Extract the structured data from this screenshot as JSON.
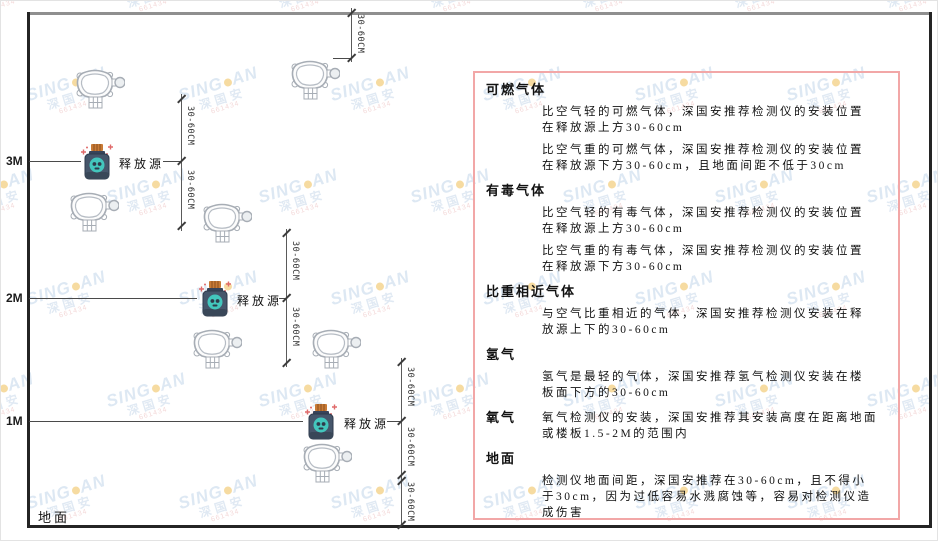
{
  "diagram": {
    "heights": [
      "3M",
      "2M",
      "1M"
    ],
    "source_label": "释放源",
    "ground_label": "地面",
    "dim_label": "30-60CM"
  },
  "panel": {
    "sections": [
      {
        "heading": "可燃气体",
        "paras": [
          "比空气轻的可燃气体，深国安推荐检测仪的安装位置在释放源上方30-60cm",
          "比空气重的可燃气体，深国安推荐检测仪的安装位置在释放源下方30-60cm，且地面间距不低于30cm"
        ]
      },
      {
        "heading": "有毒气体",
        "paras": [
          "比空气轻的有毒气体，深国安推荐检测仪的安装位置在释放源上方30-60cm",
          "比空气重的有毒气体，深国安推荐检测仪的安装位置在释放源下方30-60cm"
        ]
      },
      {
        "heading": "比重相近气体",
        "paras": [
          "与空气比重相近的气体，深国安推荐检测仪安装在释放源上下的30-60cm"
        ]
      },
      {
        "heading": "氢气",
        "paras": [
          "氢气是最轻的气体，深国安推荐氢气检测仪安装在楼板面下方的30-60cm"
        ]
      },
      {
        "heading": "氧气",
        "paras": [
          "氧气检测仪的安装，深国安推荐其安装高度在距离地面或楼板1.5-2M的范围内"
        ]
      },
      {
        "heading": "地面",
        "paras": [
          "检测仪地面间距，深国安推荐在30-60cm，且不得小于30cm，因为过低容易水溅腐蚀等，容易对检测仪造成伤害"
        ]
      }
    ]
  },
  "watermark": {
    "brand_left": "SING",
    "brand_right": "AN",
    "cjk": "深国安",
    "code": "661434"
  },
  "colors": {
    "panel_border": "#f2a7a7",
    "source_body": "#46566b",
    "source_cap": "#c97b36",
    "source_emblem": "#43c6bd",
    "watermark_blue": "#c3d6ea",
    "detector_stroke": "#a7adb5"
  }
}
